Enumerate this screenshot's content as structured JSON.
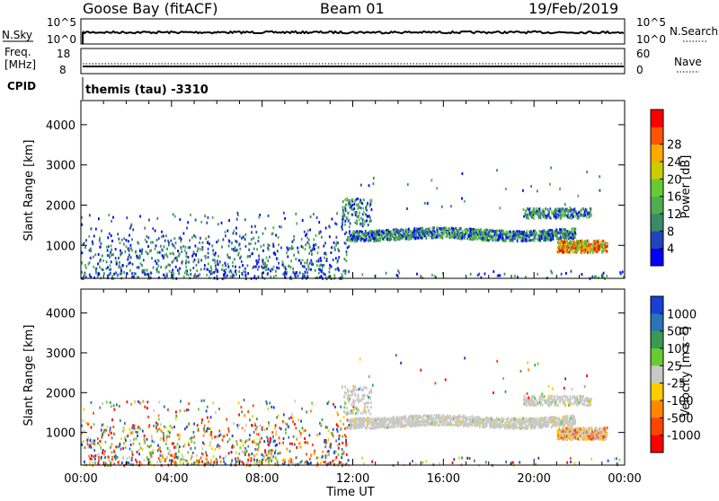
{
  "header": {
    "station": "Goose Bay (fitACF)",
    "beam": "Beam 01",
    "date": "19/Feb/2019"
  },
  "status_panel": {
    "nsky_label": "N.Sky",
    "nsearch_label": "N.Search",
    "noise_ticks_left": [
      "10^5",
      "10^0"
    ],
    "noise_ticks_right": [
      "10^5",
      "10^0"
    ],
    "freq_label_line1": "Freq.",
    "freq_label_line2": "[MHz]",
    "freq_ticks": [
      "18",
      "8"
    ],
    "nave_label": "Nave",
    "nave_ticks": [
      "60",
      "0"
    ],
    "cpid_label": "CPID",
    "cpid_value": "themis (tau) -3310"
  },
  "chart_data": [
    {
      "type": "heatmap",
      "name": "power",
      "ylabel": "Slant Range [km]",
      "xlabel": "",
      "ylim": [
        180,
        4600
      ],
      "yticks": [
        "1000",
        "2000",
        "3000",
        "4000"
      ],
      "colorbar_label": "Power [dB]",
      "colorbar_ticks": [
        "4",
        "8",
        "12",
        "16",
        "20",
        "24",
        "28"
      ],
      "colorbar_colors": [
        "#0000ff",
        "#2244bb",
        "#3a8a66",
        "#4fae4f",
        "#66cc33",
        "#cccc00",
        "#ffaa00",
        "#ff5500",
        "#ff0000"
      ],
      "scatter_regions": [
        {
          "from": 0,
          "to": 11.8,
          "r_from": 200,
          "r_to": 1250,
          "value": "low"
        },
        {
          "from": 11.8,
          "to": 21.5,
          "r_from": 1250,
          "r_to": 1600,
          "value": "mid"
        },
        {
          "from": 21,
          "to": 23,
          "r_from": 800,
          "r_to": 1100,
          "value": "high"
        }
      ]
    },
    {
      "type": "heatmap",
      "name": "velocity",
      "ylabel": "Slant Range [km]",
      "xlabel": "Time UT",
      "ylim": [
        180,
        4600
      ],
      "yticks": [
        "1000",
        "2000",
        "3000",
        "4000"
      ],
      "xticks": [
        "00:00",
        "04:00",
        "08:00",
        "12:00",
        "16:00",
        "20:00",
        "00:00"
      ],
      "colorbar_label": "Velocity [m s⁻¹]",
      "colorbar_ticks": [
        "1000",
        "500",
        "100",
        "25",
        "-25",
        "-100",
        "-500",
        "-1000"
      ],
      "colorbar_colors": [
        "#1a3fd6",
        "#2a74b8",
        "#3a9a55",
        "#66cc33",
        "#c8c8c8",
        "#ffcc00",
        "#ff8800",
        "#ff4400",
        "#ff0000"
      ]
    }
  ]
}
